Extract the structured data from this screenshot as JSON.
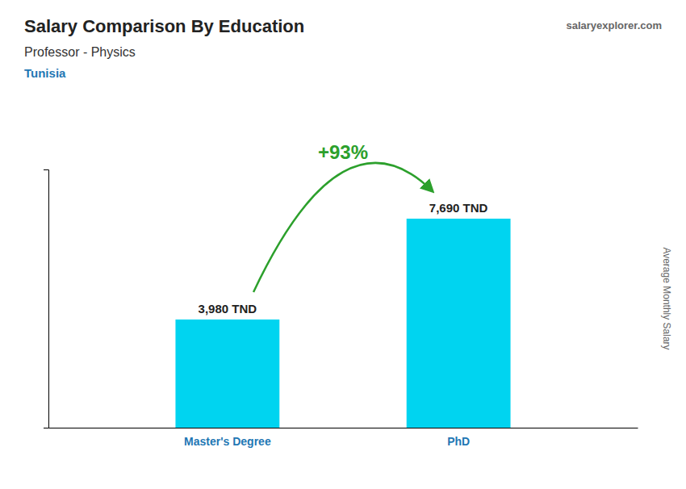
{
  "chart_data": {
    "type": "bar",
    "title": "Salary Comparison By Education",
    "subtitle": "Professor - Physics",
    "annotations": [
      "Tunisia",
      "+93%",
      "salaryexplorer.com"
    ],
    "ylabel": "Average Monthly Salary",
    "categories": [
      "Master's Degree",
      "PhD"
    ],
    "values": [
      3980,
      7690
    ],
    "value_labels": [
      "3,980 TND",
      "7,690 TND"
    ],
    "data_labels": true,
    "color": "#00d4f0",
    "ylim": [
      0,
      9500
    ],
    "tick_labels": "x"
  }
}
